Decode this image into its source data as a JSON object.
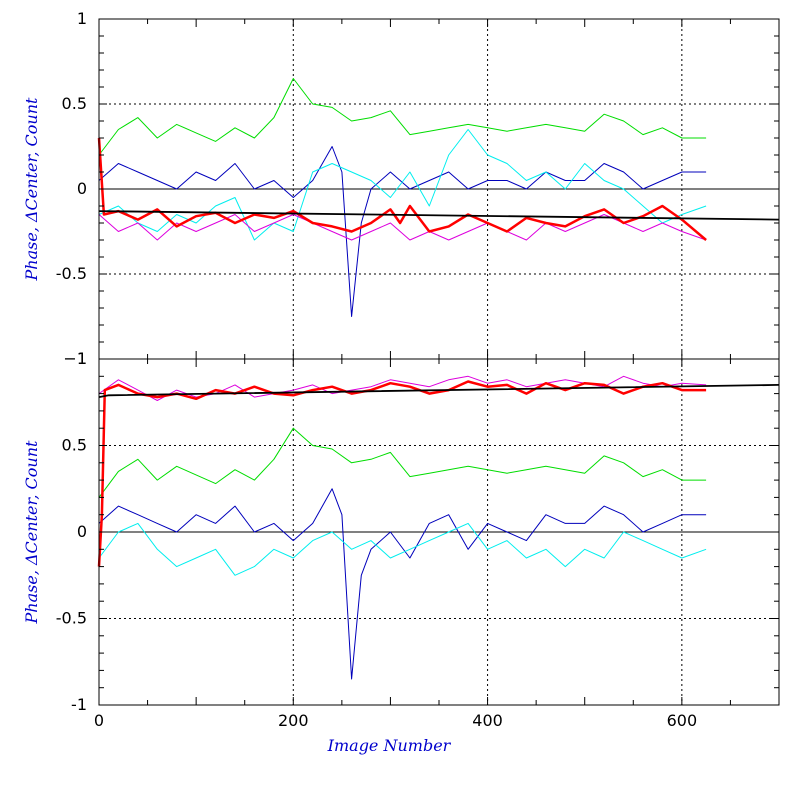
{
  "chart_data": [
    {
      "type": "line",
      "panel": "top",
      "title": "",
      "xlabel": "",
      "ylabel": "Phase, ΔCenter, Count",
      "xlim": [
        0,
        700
      ],
      "ylim": [
        -1,
        1
      ],
      "x_ticks": [],
      "y_ticks": [
        {
          "value": 1,
          "label": "1"
        },
        {
          "value": 0.5,
          "label": "0.5"
        },
        {
          "value": 0,
          "label": "0"
        },
        {
          "value": -0.5,
          "label": "-0.5"
        },
        {
          "value": -1,
          "label": "−1"
        }
      ],
      "grid": {
        "dotted_x": [
          200,
          400,
          600
        ],
        "dotted_y": [
          0.5,
          -0.5
        ],
        "solid_y": [
          0
        ]
      },
      "series": [
        {
          "color": "#00dd00",
          "width": 1,
          "x": [
            0,
            20,
            40,
            60,
            80,
            100,
            120,
            140,
            160,
            180,
            200,
            220,
            240,
            260,
            280,
            300,
            320,
            340,
            360,
            380,
            400,
            420,
            440,
            460,
            480,
            500,
            520,
            540,
            560,
            580,
            600,
            625
          ],
          "y": [
            0.2,
            0.35,
            0.42,
            0.3,
            0.38,
            0.33,
            0.28,
            0.36,
            0.3,
            0.42,
            0.65,
            0.5,
            0.48,
            0.4,
            0.42,
            0.46,
            0.32,
            0.34,
            0.36,
            0.38,
            0.36,
            0.34,
            0.36,
            0.38,
            0.36,
            0.34,
            0.44,
            0.4,
            0.32,
            0.36,
            0.3,
            0.3
          ]
        },
        {
          "color": "#0000bb",
          "width": 1,
          "x": [
            0,
            20,
            40,
            60,
            80,
            100,
            120,
            140,
            160,
            180,
            200,
            220,
            240,
            250,
            260,
            270,
            280,
            300,
            320,
            340,
            360,
            380,
            400,
            420,
            440,
            460,
            480,
            500,
            520,
            540,
            560,
            580,
            600,
            625
          ],
          "y": [
            0.05,
            0.15,
            0.1,
            0.05,
            0.0,
            0.1,
            0.05,
            0.15,
            0.0,
            0.05,
            -0.05,
            0.05,
            0.25,
            0.1,
            -0.75,
            -0.2,
            0.0,
            0.1,
            0.0,
            0.05,
            0.1,
            0.0,
            0.05,
            0.05,
            0.0,
            0.1,
            0.05,
            0.05,
            0.15,
            0.1,
            0.0,
            0.05,
            0.1,
            0.1
          ]
        },
        {
          "color": "#00eeee",
          "width": 1,
          "x": [
            0,
            20,
            40,
            60,
            80,
            100,
            120,
            140,
            160,
            180,
            200,
            220,
            240,
            260,
            280,
            300,
            320,
            340,
            360,
            380,
            400,
            420,
            440,
            460,
            480,
            500,
            520,
            540,
            560,
            580,
            600,
            625
          ],
          "y": [
            -0.15,
            -0.1,
            -0.2,
            -0.25,
            -0.15,
            -0.2,
            -0.1,
            -0.05,
            -0.3,
            -0.2,
            -0.25,
            0.1,
            0.15,
            0.1,
            0.05,
            -0.05,
            0.1,
            -0.1,
            0.2,
            0.35,
            0.2,
            0.15,
            0.05,
            0.1,
            0.0,
            0.15,
            0.05,
            0.0,
            -0.1,
            -0.2,
            -0.15,
            -0.1
          ]
        },
        {
          "color": "#dd00dd",
          "width": 1,
          "x": [
            0,
            20,
            40,
            60,
            80,
            100,
            120,
            140,
            160,
            180,
            200,
            220,
            240,
            260,
            280,
            300,
            320,
            340,
            360,
            380,
            400,
            420,
            440,
            460,
            480,
            500,
            520,
            540,
            560,
            580,
            600,
            625
          ],
          "y": [
            -0.15,
            -0.25,
            -0.2,
            -0.3,
            -0.2,
            -0.25,
            -0.2,
            -0.15,
            -0.25,
            -0.2,
            -0.15,
            -0.2,
            -0.25,
            -0.3,
            -0.25,
            -0.2,
            -0.3,
            -0.25,
            -0.3,
            -0.25,
            -0.2,
            -0.25,
            -0.3,
            -0.2,
            -0.25,
            -0.2,
            -0.15,
            -0.2,
            -0.25,
            -0.2,
            -0.25,
            -0.3
          ]
        },
        {
          "color": "#ff0000",
          "width": 2.5,
          "x": [
            0,
            5,
            20,
            40,
            60,
            80,
            100,
            120,
            140,
            160,
            180,
            200,
            220,
            240,
            260,
            280,
            300,
            310,
            320,
            340,
            360,
            380,
            400,
            420,
            440,
            460,
            480,
            500,
            520,
            540,
            560,
            580,
            600,
            625
          ],
          "y": [
            0.3,
            -0.15,
            -0.13,
            -0.18,
            -0.12,
            -0.22,
            -0.16,
            -0.14,
            -0.2,
            -0.15,
            -0.17,
            -0.13,
            -0.2,
            -0.22,
            -0.25,
            -0.2,
            -0.12,
            -0.2,
            -0.1,
            -0.25,
            -0.22,
            -0.15,
            -0.2,
            -0.25,
            -0.17,
            -0.2,
            -0.22,
            -0.16,
            -0.12,
            -0.2,
            -0.16,
            -0.1,
            -0.18,
            -0.3
          ]
        },
        {
          "color": "#000000",
          "width": 1.8,
          "x": [
            0,
            700
          ],
          "y": [
            -0.13,
            -0.18
          ]
        }
      ]
    },
    {
      "type": "line",
      "panel": "bottom",
      "title": "",
      "xlabel": "Image Number",
      "ylabel": "Phase, ΔCenter, Count",
      "xlim": [
        0,
        700
      ],
      "ylim": [
        -1,
        1
      ],
      "x_ticks": [
        {
          "value": 0,
          "label": "0"
        },
        {
          "value": 200,
          "label": "200"
        },
        {
          "value": 400,
          "label": "400"
        },
        {
          "value": 600,
          "label": "600"
        }
      ],
      "y_ticks": [
        {
          "value": 1,
          "label": "1"
        },
        {
          "value": 0.5,
          "label": "0.5"
        },
        {
          "value": 0,
          "label": "0"
        },
        {
          "value": -0.5,
          "label": "-0.5"
        },
        {
          "value": -1,
          "label": "-1"
        }
      ],
      "grid": {
        "dotted_x": [
          200,
          400,
          600
        ],
        "dotted_y": [
          0.5,
          -0.5
        ],
        "solid_y": [
          0
        ]
      },
      "series": [
        {
          "color": "#00dd00",
          "width": 1,
          "x": [
            0,
            20,
            40,
            60,
            80,
            100,
            120,
            140,
            160,
            180,
            200,
            220,
            240,
            260,
            280,
            300,
            320,
            340,
            360,
            380,
            400,
            420,
            440,
            460,
            480,
            500,
            520,
            540,
            560,
            580,
            600,
            625
          ],
          "y": [
            0.2,
            0.35,
            0.42,
            0.3,
            0.38,
            0.33,
            0.28,
            0.36,
            0.3,
            0.42,
            0.6,
            0.5,
            0.48,
            0.4,
            0.42,
            0.46,
            0.32,
            0.34,
            0.36,
            0.38,
            0.36,
            0.34,
            0.36,
            0.38,
            0.36,
            0.34,
            0.44,
            0.4,
            0.32,
            0.36,
            0.3,
            0.3
          ]
        },
        {
          "color": "#0000bb",
          "width": 1,
          "x": [
            0,
            20,
            40,
            60,
            80,
            100,
            120,
            140,
            160,
            180,
            200,
            220,
            240,
            250,
            260,
            270,
            280,
            300,
            320,
            340,
            360,
            380,
            400,
            420,
            440,
            460,
            480,
            500,
            520,
            540,
            560,
            580,
            600,
            625
          ],
          "y": [
            0.05,
            0.15,
            0.1,
            0.05,
            0.0,
            0.1,
            0.05,
            0.15,
            0.0,
            0.05,
            -0.05,
            0.05,
            0.25,
            0.1,
            -0.85,
            -0.25,
            -0.1,
            0.0,
            -0.15,
            0.05,
            0.1,
            -0.1,
            0.05,
            0.0,
            -0.05,
            0.1,
            0.05,
            0.05,
            0.15,
            0.1,
            0.0,
            0.05,
            0.1,
            0.1
          ]
        },
        {
          "color": "#00eeee",
          "width": 1,
          "x": [
            0,
            20,
            40,
            60,
            80,
            100,
            120,
            140,
            160,
            180,
            200,
            220,
            240,
            260,
            280,
            300,
            320,
            340,
            360,
            380,
            400,
            420,
            440,
            460,
            480,
            500,
            520,
            540,
            560,
            580,
            600,
            625
          ],
          "y": [
            -0.15,
            0.0,
            0.05,
            -0.1,
            -0.2,
            -0.15,
            -0.1,
            -0.25,
            -0.2,
            -0.1,
            -0.15,
            -0.05,
            0.0,
            -0.1,
            -0.05,
            -0.15,
            -0.1,
            -0.05,
            0.0,
            0.05,
            -0.1,
            -0.05,
            -0.15,
            -0.1,
            -0.2,
            -0.1,
            -0.15,
            0.0,
            -0.05,
            -0.1,
            -0.15,
            -0.1
          ]
        },
        {
          "color": "#dd00dd",
          "width": 1,
          "x": [
            0,
            20,
            40,
            60,
            80,
            100,
            120,
            140,
            160,
            180,
            200,
            220,
            240,
            260,
            280,
            300,
            320,
            340,
            360,
            380,
            400,
            420,
            440,
            460,
            480,
            500,
            520,
            540,
            560,
            580,
            600,
            625
          ],
          "y": [
            0.8,
            0.88,
            0.82,
            0.76,
            0.82,
            0.78,
            0.8,
            0.85,
            0.78,
            0.8,
            0.82,
            0.85,
            0.8,
            0.82,
            0.84,
            0.88,
            0.86,
            0.84,
            0.88,
            0.9,
            0.86,
            0.88,
            0.84,
            0.86,
            0.88,
            0.86,
            0.84,
            0.9,
            0.86,
            0.84,
            0.86,
            0.85
          ]
        },
        {
          "color": "#ff0000",
          "width": 2.5,
          "x": [
            0,
            3,
            6,
            20,
            40,
            60,
            80,
            100,
            120,
            140,
            160,
            180,
            200,
            220,
            240,
            260,
            280,
            300,
            320,
            340,
            360,
            380,
            400,
            420,
            440,
            460,
            480,
            500,
            520,
            540,
            560,
            580,
            600,
            625
          ],
          "y": [
            -0.2,
            0.1,
            0.82,
            0.85,
            0.8,
            0.78,
            0.8,
            0.77,
            0.82,
            0.8,
            0.84,
            0.8,
            0.79,
            0.82,
            0.84,
            0.8,
            0.82,
            0.86,
            0.84,
            0.8,
            0.82,
            0.87,
            0.84,
            0.85,
            0.8,
            0.86,
            0.82,
            0.86,
            0.85,
            0.8,
            0.84,
            0.86,
            0.82,
            0.82
          ]
        },
        {
          "color": "#000000",
          "width": 1.8,
          "x": [
            0,
            10,
            700
          ],
          "y": [
            0.78,
            0.79,
            0.85
          ]
        }
      ]
    }
  ]
}
